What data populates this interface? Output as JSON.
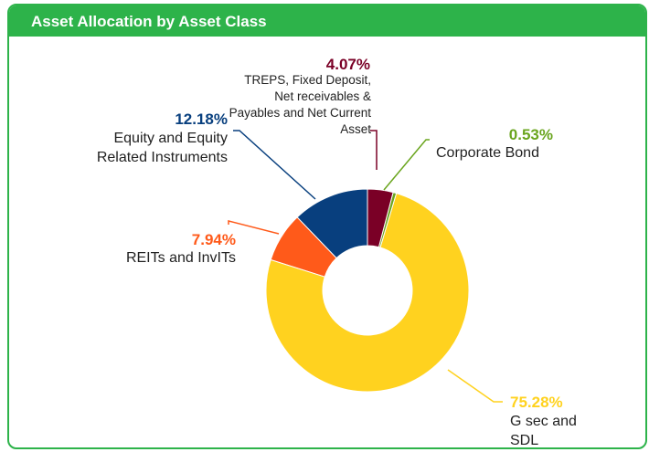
{
  "chart_data": {
    "type": "donut",
    "title": "Asset Allocation by Asset Class",
    "categories": [
      "TREPS, Fixed Deposit, Net receivables & Payables and Net Current Asset",
      "Corporate Bond",
      "G sec and SDL",
      "REITs and InvITs",
      "Equity and Equity Related Instruments"
    ],
    "values": [
      4.07,
      0.53,
      75.28,
      7.94,
      12.18
    ],
    "value_labels": [
      "4.07%",
      "0.53%",
      "75.28%",
      "7.94%",
      "12.18%"
    ],
    "colors": [
      "#7a0026",
      "#6aa51e",
      "#ffd21f",
      "#ff5a1a",
      "#083f7e"
    ]
  }
}
